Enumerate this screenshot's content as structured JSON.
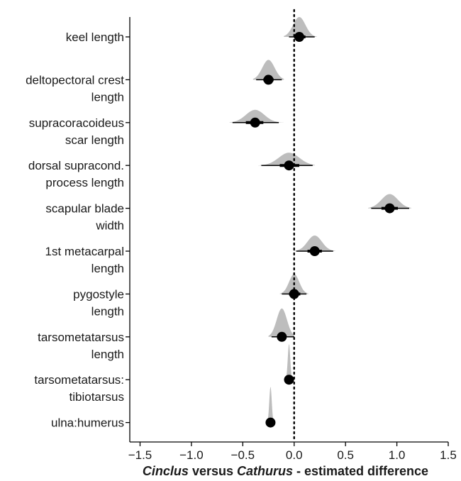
{
  "chart_data": {
    "type": "scatter",
    "xlabel_parts": [
      {
        "text": "Cinclus",
        "italic": true
      },
      {
        "text": " versus ",
        "italic": false
      },
      {
        "text": "Cathurus",
        "italic": true
      },
      {
        "text": " - estimated difference",
        "italic": false
      }
    ],
    "xlim": [
      -1.6,
      1.5
    ],
    "xticks": [
      -1.5,
      -1.0,
      -0.5,
      0.0,
      0.5,
      1.0,
      1.5
    ],
    "xtick_labels": [
      "−1.5",
      "−1.0",
      "−0.5",
      "0.0",
      "0.5",
      "1.0",
      "1.5"
    ],
    "reference_line_x": 0,
    "grid": false,
    "colors": {
      "distribution": "#bdbdbd",
      "point": "#000000",
      "interval": "#000000",
      "reference": "#000000"
    },
    "categories": [
      {
        "label": [
          "keel length"
        ],
        "estimate": 0.05,
        "ci66": [
          0.0,
          0.11
        ],
        "ci95": [
          -0.05,
          0.2
        ],
        "density": {
          "min": -0.1,
          "max": 0.22,
          "sd": 0.06,
          "height": 28
        }
      },
      {
        "label": [
          "deltopectoral crest",
          "length"
        ],
        "estimate": -0.25,
        "ci66": [
          -0.3,
          -0.2
        ],
        "ci95": [
          -0.37,
          -0.12
        ],
        "density": {
          "min": -0.4,
          "max": -0.1,
          "sd": 0.06,
          "height": 28
        }
      },
      {
        "label": [
          "supracoracoideus",
          "scar length"
        ],
        "estimate": -0.38,
        "ci66": [
          -0.47,
          -0.3
        ],
        "ci95": [
          -0.6,
          -0.15
        ],
        "density": {
          "min": -0.63,
          "max": -0.1,
          "sd": 0.09,
          "height": 18
        }
      },
      {
        "label": [
          "dorsal supracond.",
          "process length"
        ],
        "estimate": -0.05,
        "ci66": [
          -0.14,
          0.05
        ],
        "ci95": [
          -0.32,
          0.18
        ],
        "density": {
          "min": -0.35,
          "max": 0.2,
          "sd": 0.1,
          "height": 18
        }
      },
      {
        "label": [
          "scapular blade",
          "width"
        ],
        "estimate": 0.93,
        "ci66": [
          0.85,
          1.01
        ],
        "ci95": [
          0.75,
          1.12
        ],
        "density": {
          "min": 0.72,
          "max": 1.14,
          "sd": 0.08,
          "height": 20
        }
      },
      {
        "label": [
          "1st metacarpal",
          "length"
        ],
        "estimate": 0.2,
        "ci66": [
          0.13,
          0.27
        ],
        "ci95": [
          0.02,
          0.38
        ],
        "density": {
          "min": 0.0,
          "max": 0.4,
          "sd": 0.07,
          "height": 22
        }
      },
      {
        "label": [
          "pygostyle",
          "length"
        ],
        "estimate": 0.0,
        "ci66": [
          -0.05,
          0.06
        ],
        "ci95": [
          -0.12,
          0.12
        ],
        "density": {
          "min": -0.14,
          "max": 0.14,
          "sd": 0.05,
          "height": 28
        }
      },
      {
        "label": [
          "tarsometatarsus",
          "length"
        ],
        "estimate": -0.12,
        "ci66": [
          -0.16,
          -0.08
        ],
        "ci95": [
          -0.22,
          0.0
        ],
        "density": {
          "min": -0.25,
          "max": 0.0,
          "sd": 0.05,
          "height": 40
        }
      },
      {
        "label": [
          "tarsometatarsus:",
          "tibiotarsus"
        ],
        "estimate": -0.05,
        "ci66": [
          -0.06,
          -0.04
        ],
        "ci95": [
          -0.07,
          -0.03
        ],
        "density": {
          "min": -0.08,
          "max": -0.02,
          "sd": 0.012,
          "height": 50
        }
      },
      {
        "label": [
          "ulna:humerus"
        ],
        "estimate": -0.23,
        "ci66": [
          -0.24,
          -0.22
        ],
        "ci95": [
          -0.25,
          -0.21
        ],
        "density": {
          "min": -0.26,
          "max": -0.2,
          "sd": 0.012,
          "height": 50
        }
      }
    ]
  }
}
